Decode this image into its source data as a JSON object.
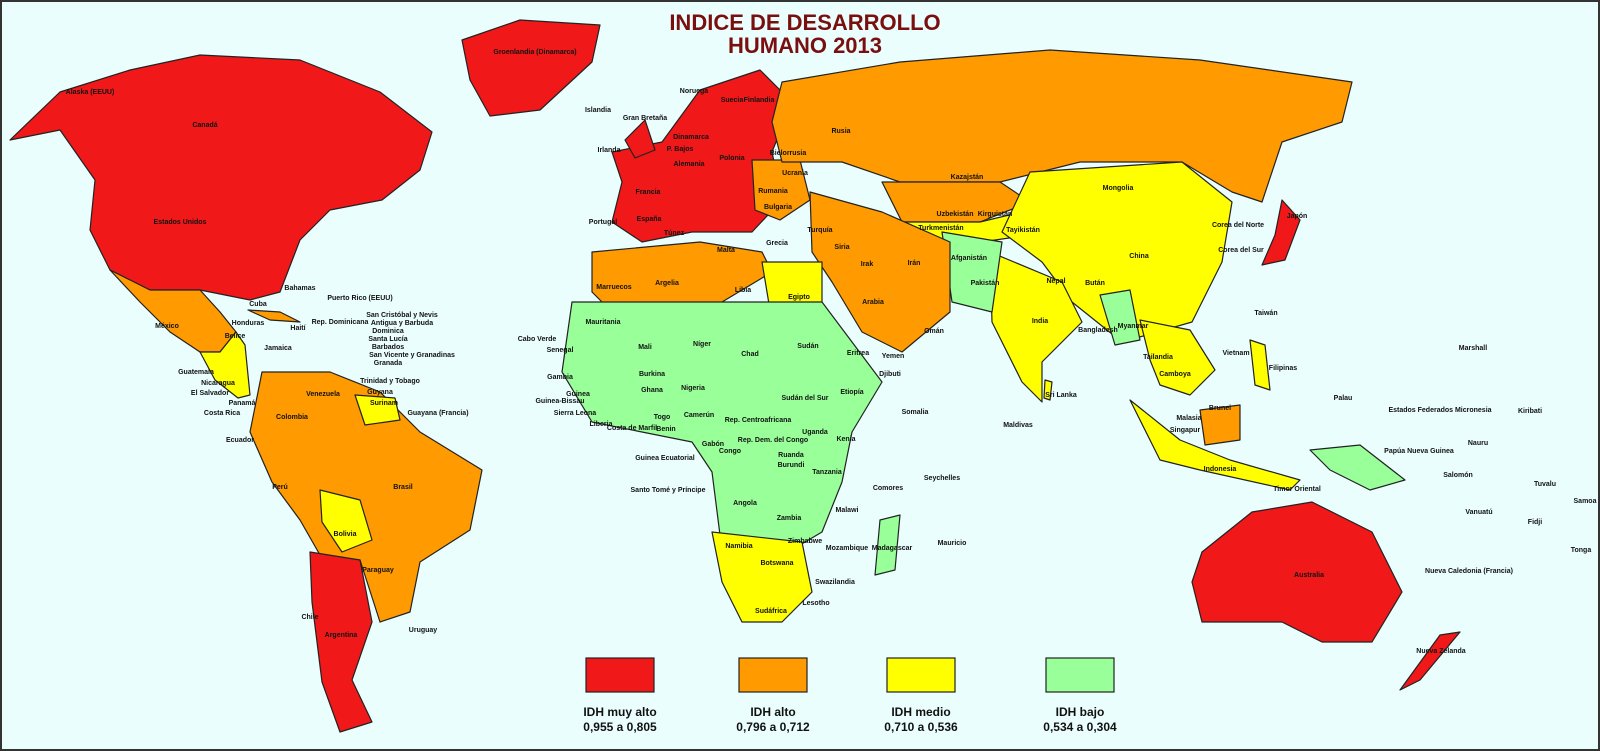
{
  "title_lines": [
    "INDICE DE DESARROLLO",
    "HUMANO 2013"
  ],
  "legend": [
    {
      "label": "IDH muy alto",
      "range": "0,955 a 0,805",
      "color": "#f01818"
    },
    {
      "label": "IDH alto",
      "range": "0,796 a 0,712",
      "color": "#ff9a00"
    },
    {
      "label": "IDH medio",
      "range": "0,710 a 0,536",
      "color": "#ffff00"
    },
    {
      "label": "IDH bajo",
      "range": "0,534 a 0,304",
      "color": "#99ff99"
    }
  ],
  "labels": [
    "Alaska (EEUU)",
    "Canadá",
    "Estados Unidos",
    "México",
    "Cuba",
    "Bahamas",
    "Haití",
    "Rep. Dominicana",
    "Puerto Rico (EEUU)",
    "Jamaica",
    "Belice",
    "Honduras",
    "Guatemala",
    "El Salvador",
    "Nicaragua",
    "Costa Rica",
    "Panamá",
    "San Cristóbal y Nevis",
    "Antigua y Barbuda",
    "Dominica",
    "Santa Lucía",
    "Barbados",
    "San Vicente y Granadinas",
    "Granada",
    "Trinidad y Tobago",
    "Venezuela",
    "Guyana",
    "Surinam",
    "Guayana (Francia)",
    "Colombia",
    "Ecuador",
    "Perú",
    "Brasil",
    "Bolivia",
    "Paraguay",
    "Chile",
    "Argentina",
    "Uruguay",
    "Groenlandia (Dinamarca)",
    "Islandia",
    "Noruega",
    "Suecia",
    "Finlandia",
    "Gran Bretaña",
    "Irlanda",
    "P. Bajos",
    "Dinamarca",
    "Alemania",
    "Polonia",
    "Bielorrusia",
    "Ucrania",
    "Francia",
    "España",
    "Portugal",
    "Rumania",
    "Bulgaria",
    "Grecia",
    "Túnez",
    "Malta",
    "Rusia",
    "Kazajstán",
    "Mongolia",
    "China",
    "Japón",
    "Corea del Norte",
    "Corea del Sur",
    "Taiwán",
    "Uzbekistán",
    "Turkmenistán",
    "Kirguistán",
    "Tayikistán",
    "Afganistán",
    "Pakistán",
    "Nepal",
    "Bután",
    "India",
    "Bangladesh",
    "Myanmar",
    "Tailandia",
    "Camboya",
    "Vietnam",
    "Sri Lanka",
    "Maldivas",
    "Filipinas",
    "Malasia",
    "Singapur",
    "Brunei",
    "Indonesia",
    "Timor Oriental",
    "Papúa Nueva Guinea",
    "Australia",
    "Nueva Zelanda",
    "Turquía",
    "Siria",
    "Irak",
    "Irán",
    "Arabia",
    "Yemen",
    "Omán",
    "Egipto",
    "Libia",
    "Argelia",
    "Marruecos",
    "Mauritania",
    "Mali",
    "Níger",
    "Chad",
    "Sudán",
    "Sudán del Sur",
    "Etiopía",
    "Eritrea",
    "Djibuti",
    "Somalia",
    "Kenia",
    "Uganda",
    "Tanzania",
    "Nigeria",
    "Ghana",
    "Burkina",
    "Senegal",
    "Gambia",
    "Guinea-Bissau",
    "Guinea",
    "Sierra Leona",
    "Liberia",
    "Costa de Marfil",
    "Togo",
    "Benin",
    "Camerún",
    "Rep. Centroafricana",
    "Gabón",
    "Congo",
    "Rep. Dem. del Congo",
    "Ruanda",
    "Burundi",
    "Angola",
    "Zambia",
    "Malawi",
    "Zimbabwe",
    "Mozambique",
    "Namibia",
    "Botswana",
    "Sudáfrica",
    "Lesotho",
    "Swazilandia",
    "Madagascar",
    "Comores",
    "Seychelles",
    "Mauricio",
    "Cabo Verde",
    "Guinea Ecuatorial",
    "Santo Tomé y Príncipe",
    "Marshall",
    "Palau",
    "Estados Federados Micronesia",
    "Kiribati",
    "Nauru",
    "Salomón",
    "Tuvalu",
    "Vanuatú",
    "Fidji",
    "Samoa",
    "Tonga",
    "Nueva Caledonia (Francia)"
  ]
}
